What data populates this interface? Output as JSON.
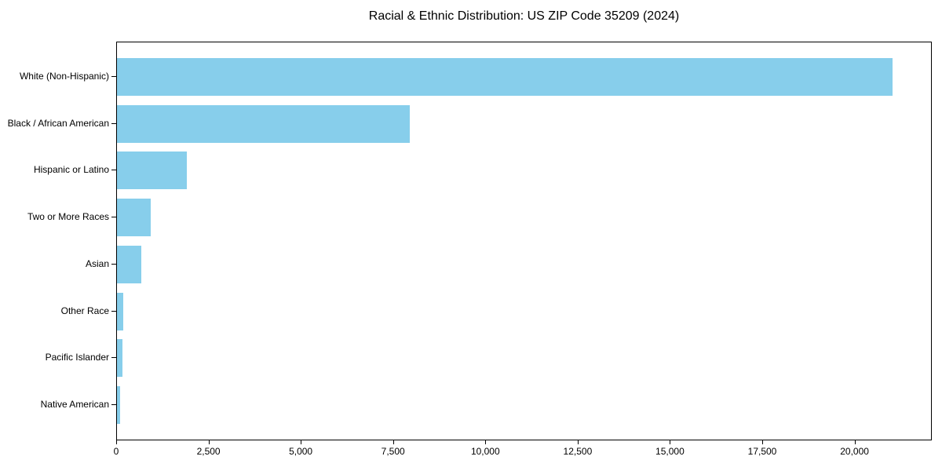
{
  "chart_data": {
    "type": "bar",
    "orientation": "horizontal",
    "title": "Racial & Ethnic Distribution: US ZIP Code 35209 (2024)",
    "categories": [
      "White (Non-Hispanic)",
      "Black / African American",
      "Hispanic or Latino",
      "Two or More Races",
      "Asian",
      "Other Race",
      "Pacific Islander",
      "Native American"
    ],
    "values": [
      21000,
      7940,
      1890,
      920,
      660,
      165,
      140,
      75
    ],
    "xlabel": "",
    "ylabel": "",
    "xlim": [
      0,
      22050
    ],
    "x_ticks": [
      0,
      2500,
      5000,
      7500,
      10000,
      12500,
      15000,
      17500,
      20000
    ],
    "x_tick_labels": [
      "0",
      "2,500",
      "5,000",
      "7,500",
      "10,000",
      "12,500",
      "15,000",
      "17,500",
      "20,000"
    ],
    "bar_color": "#87ceeb",
    "axis_color": "#000000",
    "grid": false,
    "legend_position": "none"
  }
}
